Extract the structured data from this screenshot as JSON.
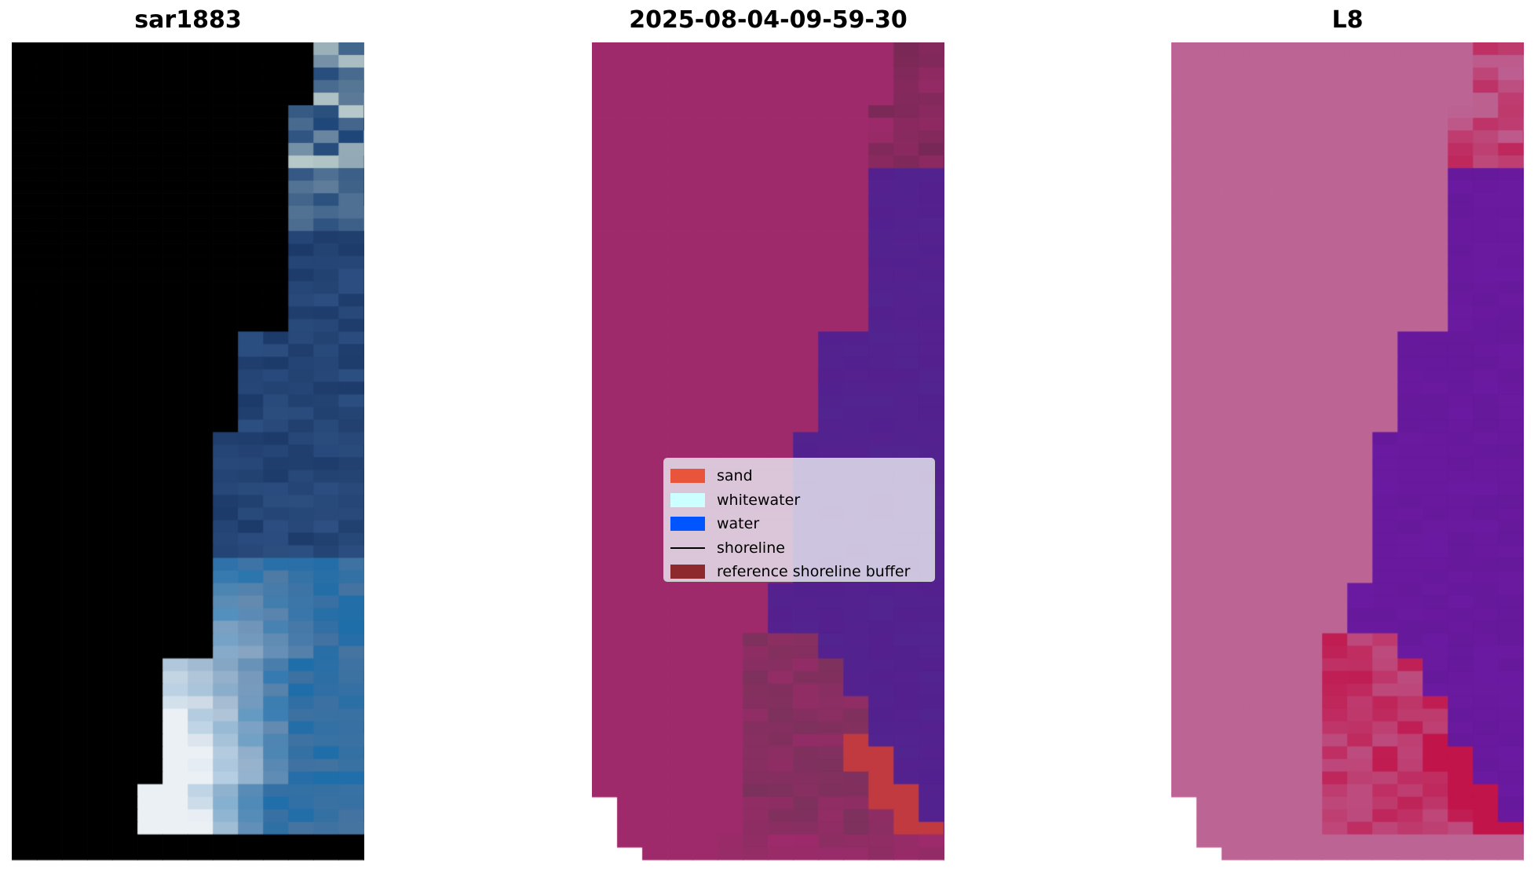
{
  "panels": [
    {
      "title": "sar1883",
      "kind": "rgb"
    },
    {
      "title": "2025-08-04-09-59-30",
      "kind": "classified"
    },
    {
      "title": "L8",
      "kind": "mndwi"
    }
  ],
  "legend": {
    "items": [
      {
        "label": "sand",
        "type": "patch",
        "color": "#e8553a"
      },
      {
        "label": "whitewater",
        "type": "patch",
        "color": "#ccffff"
      },
      {
        "label": "water",
        "type": "patch",
        "color": "#0055ff"
      },
      {
        "label": "shoreline",
        "type": "line",
        "color": "#000000"
      },
      {
        "label": "reference shoreline buffer",
        "type": "patch",
        "color": "#8e2a2e"
      }
    ]
  },
  "colors": {
    "land_overlay": "#9e2a6b",
    "water_overlay": "#52248f",
    "l8_land": "#bc6595",
    "l8_water": "#6a1aa0",
    "l8_sand": "#c0144a"
  }
}
